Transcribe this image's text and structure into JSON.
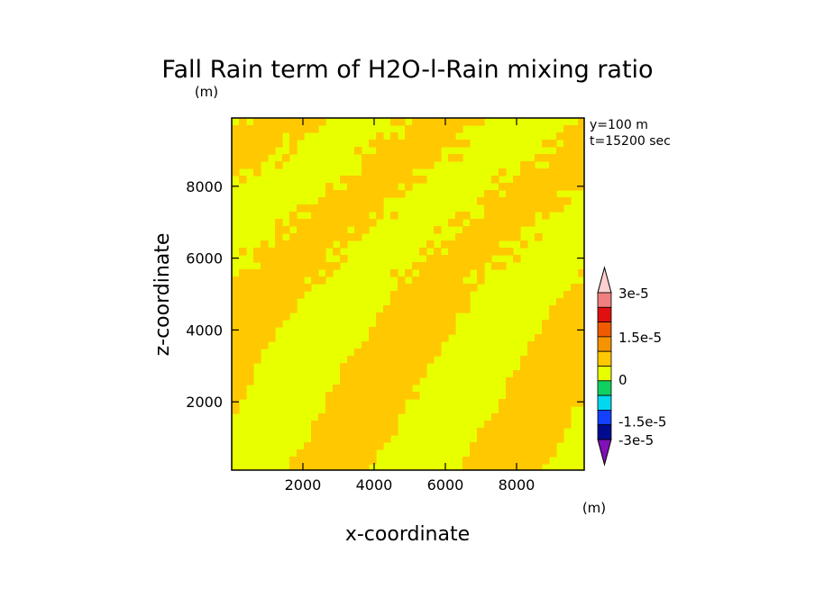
{
  "chart_data": {
    "type": "heatmap",
    "title": "Fall Rain term of H2O-l-Rain mixing ratio",
    "title_unit": "(m)",
    "xlabel": "x-coordinate",
    "ylabel": "z-coordinate",
    "annotations": [
      "y=100 m",
      "t=15200 sec"
    ],
    "xlim": [
      0,
      9900
    ],
    "ylim": [
      100,
      9900
    ],
    "x_ticks": [
      2000,
      4000,
      6000,
      8000
    ],
    "y_ticks": [
      2000,
      4000,
      6000,
      8000
    ],
    "colorbar": {
      "unit": "(m)",
      "tick_labels": [
        "3e-5",
        "1.5e-5",
        "0",
        "-1.5e-5",
        "-3e-5"
      ],
      "levels_top_to_bottom": [
        "#ffd0d0",
        "#f08080",
        "#e01010",
        "#f05a00",
        "#f59300",
        "#ffc800",
        "#e8ff00",
        "#10d060",
        "#00d8f0",
        "#1440ff",
        "#000c90",
        "#8010b8"
      ]
    },
    "field": {
      "dominant_colors": [
        "#ffc800",
        "#e8ff00"
      ],
      "description_levels": [
        "0 to 7.5e-6",
        "-7.5e-6 to 0"
      ]
    }
  }
}
